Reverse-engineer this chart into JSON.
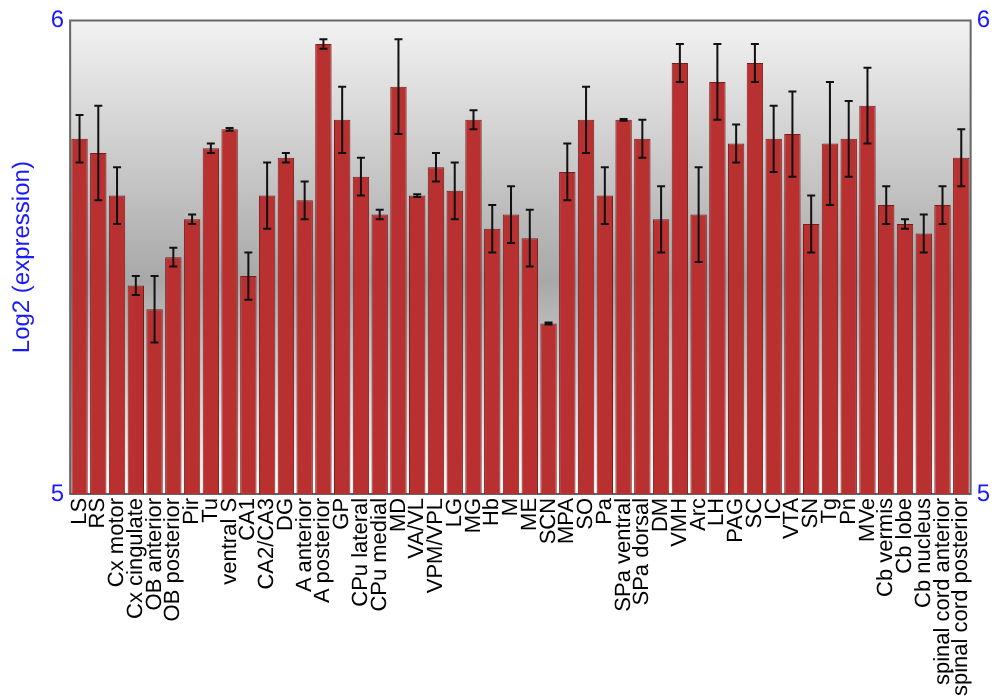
{
  "chart_data": {
    "type": "bar",
    "ylabel": "Log2 (expression)",
    "categories": [
      "LS",
      "RS",
      "Cx motor",
      "Cx cingulate",
      "OB anterior",
      "OB posterior",
      "Pir",
      "Tu",
      "ventral S",
      "CA1",
      "CA2/CA3",
      "DG",
      "A anterior",
      "A posterior",
      "GP",
      "CPu lateral",
      "CPu medial",
      "MD",
      "VA/VL",
      "VPM/VPL",
      "LG",
      "MG",
      "Hb",
      "M",
      "ME",
      "SCN",
      "MPA",
      "SO",
      "Pa",
      "SPa ventral",
      "SPa dorsal",
      "DM",
      "VMH",
      "Arc",
      "LH",
      "PAG",
      "SC",
      "IC",
      "VTA",
      "SN",
      "Tg",
      "Pn",
      "MVe",
      "Cb vermis",
      "Cb lobe",
      "Cb nucleus",
      "spinal cord anterior",
      "spinal cord posterior"
    ],
    "values": [
      5.75,
      5.72,
      5.63,
      5.44,
      5.39,
      5.5,
      5.58,
      5.73,
      5.77,
      5.46,
      5.63,
      5.71,
      5.62,
      5.95,
      5.79,
      5.67,
      5.59,
      5.86,
      5.63,
      5.69,
      5.64,
      5.79,
      5.56,
      5.59,
      5.54,
      5.36,
      5.68,
      5.79,
      5.63,
      5.79,
      5.75,
      5.58,
      5.91,
      5.59,
      5.87,
      5.74,
      5.91,
      5.75,
      5.76,
      5.57,
      5.74,
      5.75,
      5.82,
      5.61,
      5.57,
      5.55,
      5.61,
      5.71
    ],
    "errors": [
      0.05,
      0.1,
      0.06,
      0.02,
      0.07,
      0.02,
      0.01,
      0.01,
      0.003,
      0.05,
      0.07,
      0.01,
      0.04,
      0.01,
      0.07,
      0.04,
      0.01,
      0.1,
      0.003,
      0.03,
      0.06,
      0.02,
      0.05,
      0.06,
      0.06,
      0.002,
      0.06,
      0.07,
      0.06,
      0.002,
      0.04,
      0.07,
      0.04,
      0.1,
      0.08,
      0.04,
      0.04,
      0.07,
      0.09,
      0.06,
      0.13,
      0.08,
      0.08,
      0.04,
      0.01,
      0.04,
      0.04,
      0.06
    ],
    "color": "#b83030",
    "ylim": [
      5,
      6
    ],
    "yticks": [
      5,
      6
    ],
    "y2lim": [
      5,
      6
    ],
    "y2ticks": [
      5,
      6
    ],
    "grid": false,
    "legend": false
  }
}
